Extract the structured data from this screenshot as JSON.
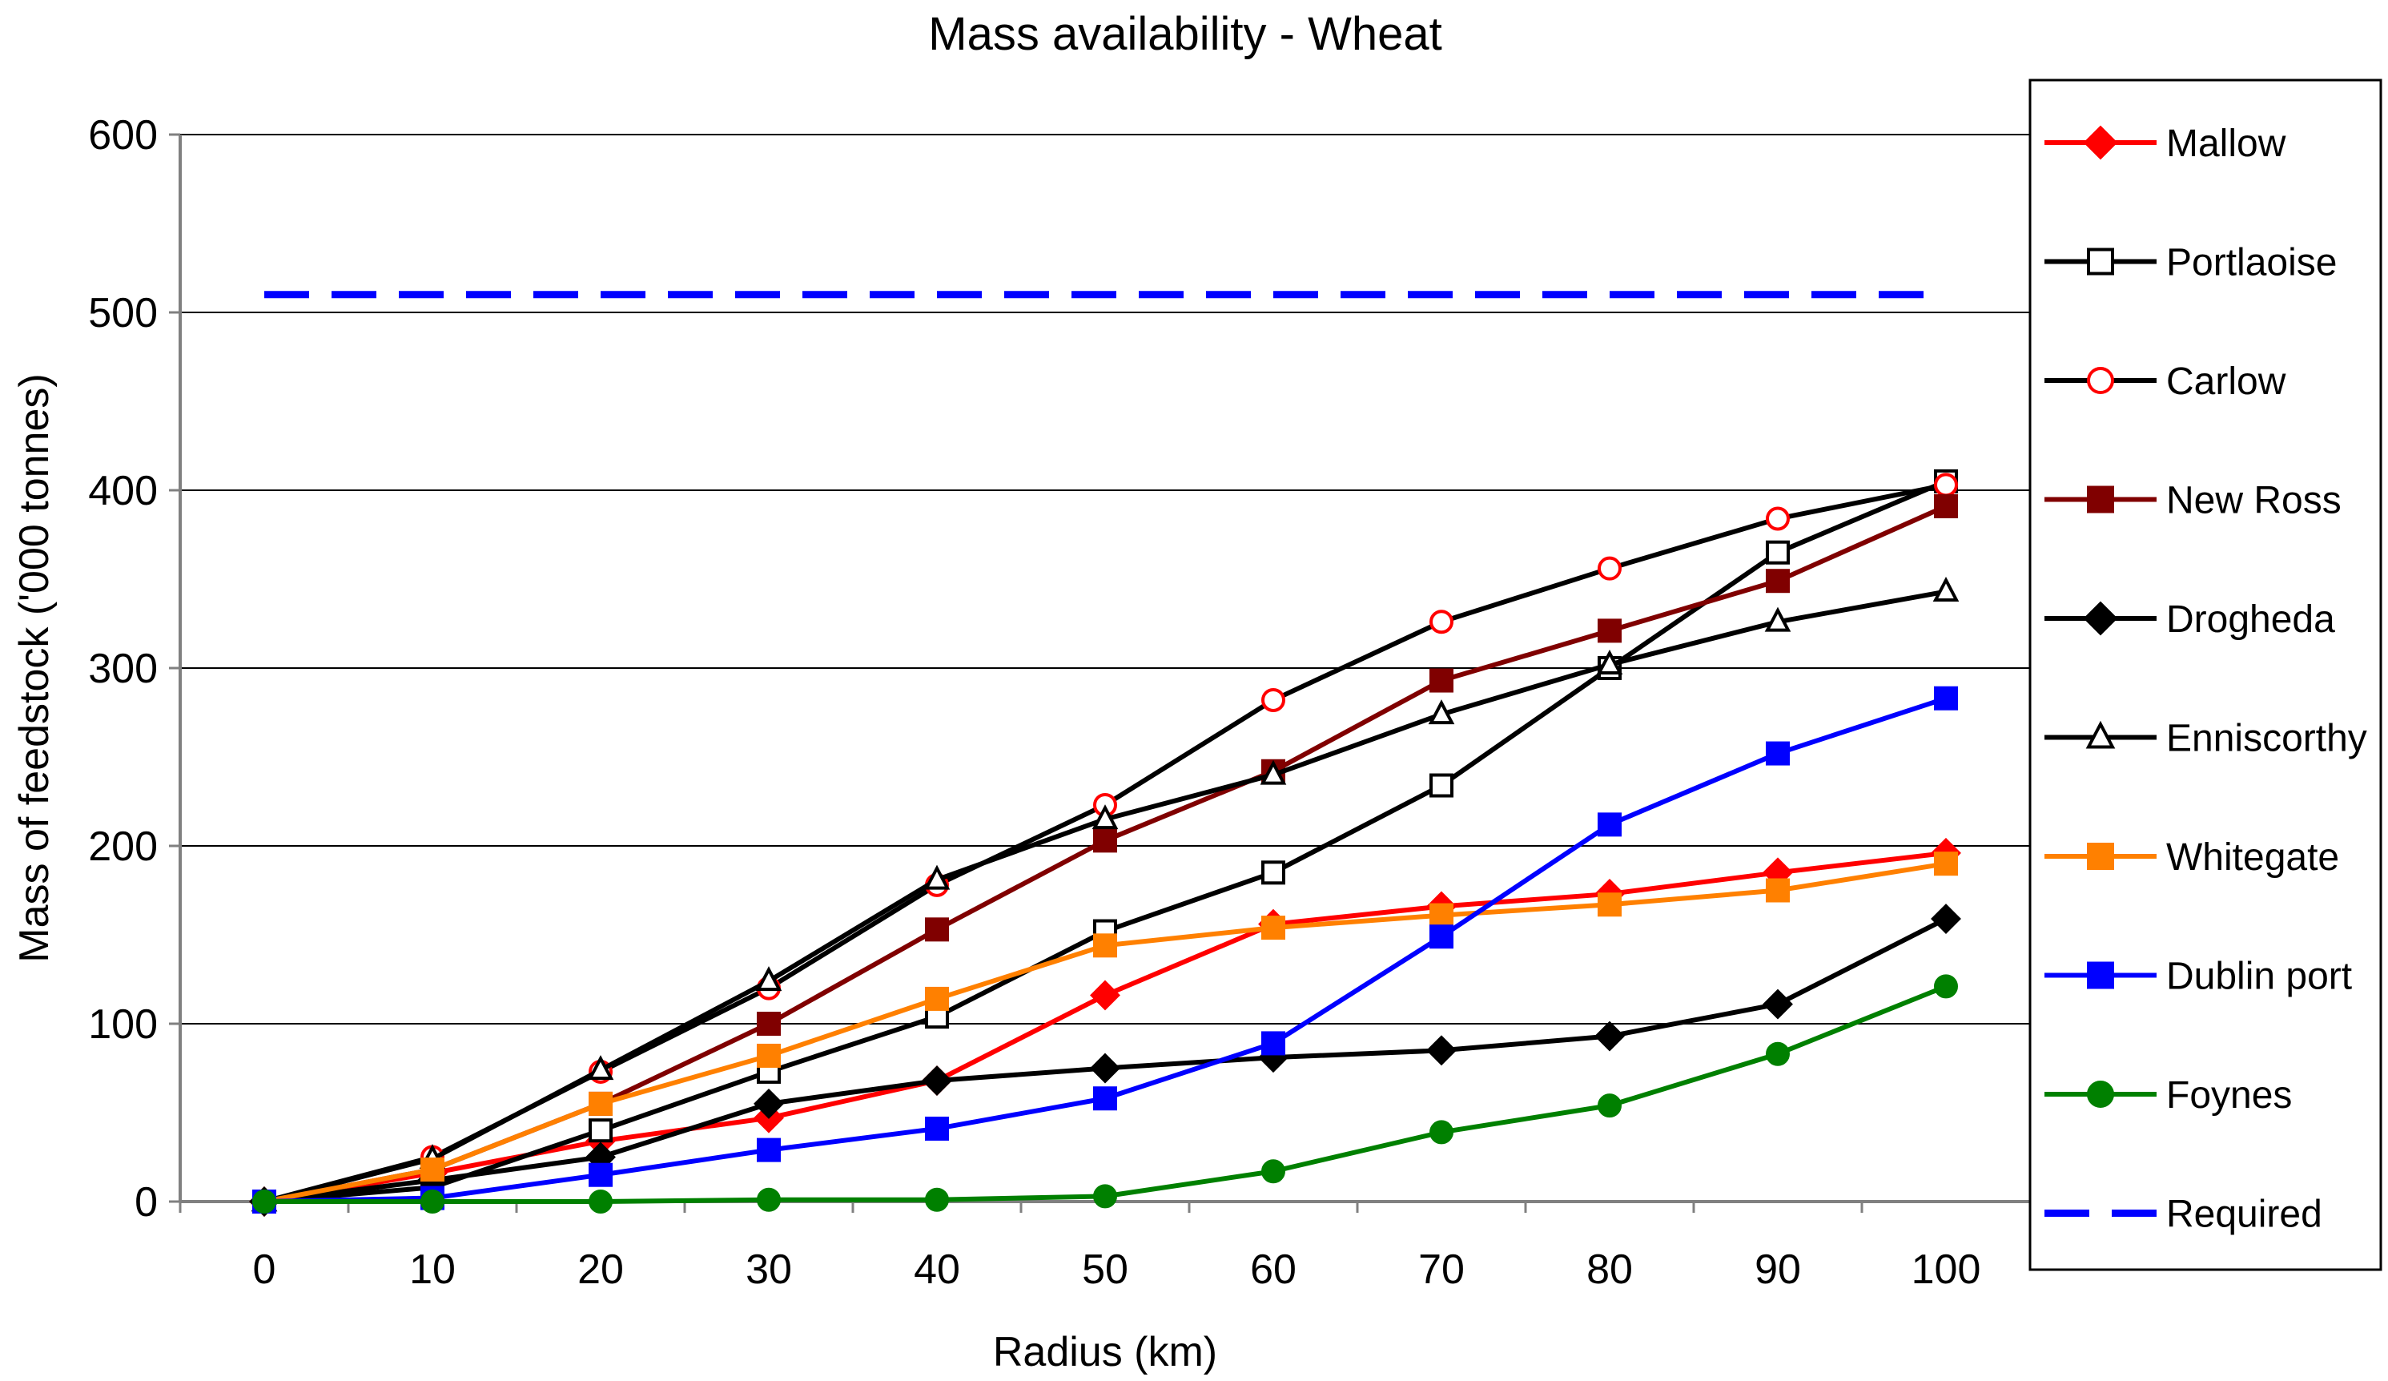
{
  "chart_data": {
    "type": "line",
    "title": "Mass availability - Wheat",
    "xlabel": "Radius (km)",
    "ylabel": "Mass of feedstock ('000 tonnes)",
    "x": [
      0,
      10,
      20,
      30,
      40,
      50,
      60,
      70,
      80,
      90,
      100
    ],
    "xlim": [
      0,
      100
    ],
    "ylim": [
      0,
      600
    ],
    "yticks": [
      0,
      100,
      200,
      300,
      400,
      500,
      600
    ],
    "grid": "horizontal",
    "legend_position": "right",
    "series": [
      {
        "name": "Mallow",
        "color": "#ff0000",
        "marker": "diamond",
        "fill": "#ff0000",
        "values": [
          0,
          16,
          34,
          47,
          68,
          116,
          156,
          166,
          173,
          185,
          196
        ]
      },
      {
        "name": "Portlaoise",
        "color": "#000000",
        "marker": "square",
        "fill": "#ffffff",
        "values": [
          0,
          8,
          40,
          73,
          104,
          152,
          185,
          234,
          300,
          365,
          405
        ]
      },
      {
        "name": "Carlow",
        "color": "#000000",
        "marker": "circle",
        "fill": "#ffffff",
        "markerStroke": "#ff0000",
        "values": [
          0,
          25,
          73,
          120,
          178,
          223,
          282,
          326,
          356,
          384,
          403
        ]
      },
      {
        "name": "New Ross",
        "color": "#800000",
        "marker": "square",
        "fill": "#800000",
        "values": [
          0,
          18,
          55,
          100,
          153,
          203,
          242,
          293,
          321,
          349,
          391
        ]
      },
      {
        "name": "Drogheda",
        "color": "#000000",
        "marker": "diamond",
        "fill": "#000000",
        "values": [
          0,
          12,
          25,
          55,
          68,
          75,
          81,
          85,
          93,
          111,
          159
        ]
      },
      {
        "name": "Enniscorthy",
        "color": "#000000",
        "marker": "triangle",
        "fill": "#ffffff",
        "values": [
          0,
          24,
          74,
          124,
          181,
          215,
          240,
          274,
          302,
          326,
          343
        ]
      },
      {
        "name": "Whitegate",
        "color": "#ff8000",
        "marker": "square",
        "fill": "#ff8000",
        "values": [
          0,
          18,
          55,
          82,
          114,
          144,
          154,
          161,
          167,
          175,
          190
        ]
      },
      {
        "name": "Dublin port",
        "color": "#0000ff",
        "marker": "square",
        "fill": "#0000ff",
        "values": [
          0,
          2,
          15,
          29,
          41,
          58,
          89,
          149,
          212,
          252,
          283
        ]
      },
      {
        "name": "Foynes",
        "color": "#008000",
        "marker": "circle",
        "fill": "#008000",
        "values": [
          0,
          0,
          0,
          1,
          1,
          3,
          17,
          39,
          54,
          83,
          121
        ]
      },
      {
        "name": "Required",
        "color": "#0000ff",
        "marker": "none",
        "dashed": true,
        "values": [
          510,
          510,
          510,
          510,
          510,
          510,
          510,
          510,
          510,
          510,
          510
        ]
      }
    ]
  }
}
